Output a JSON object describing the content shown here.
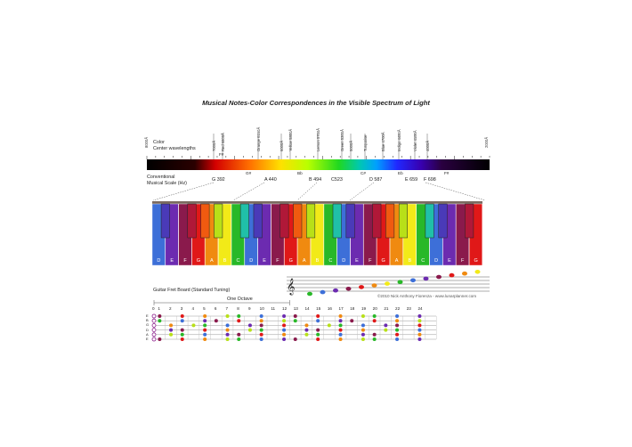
{
  "title": "Musical Notes-Color Correspondences in the Visible Spectrum of Light",
  "spectrum": {
    "label_color": "Color",
    "label_center": "Center wavelengths",
    "label_scale_line1": "Conventional",
    "label_scale_line2": "Musical Scale (Hz)",
    "left_end": "8000Å",
    "right_end": "2000Å",
    "color_labels": [
      {
        "text": "7000Å"
      },
      {
        "text": "Red 6800Å"
      },
      {
        "text": "Orange 6150Å"
      },
      {
        "text": "6000Å"
      },
      {
        "text": "Yellow 5800Å"
      },
      {
        "text": "Lemon 5700Å"
      },
      {
        "text": "Green 5300Å"
      },
      {
        "text": "5000Å"
      },
      {
        "text": "Turquoise"
      },
      {
        "text": "Blue 4700Å"
      },
      {
        "text": "Indigo 4400Å"
      },
      {
        "text": "Violet 4100Å"
      },
      {
        "text": "4000Å"
      }
    ],
    "sharp_labels": [
      "F#",
      "G#",
      "Bb",
      "C#",
      "Eb",
      "F#"
    ],
    "hz_labels": [
      "G 392",
      "A 440",
      "B 494",
      "C523",
      "D 587",
      "E 659",
      "F 698"
    ]
  },
  "keyboard": {
    "white_keys": [
      {
        "note": "D",
        "color": "#3d6fd8"
      },
      {
        "note": "E",
        "color": "#6c2bb0"
      },
      {
        "note": "F",
        "color": "#8a1a4c"
      },
      {
        "note": "G",
        "color": "#e01818"
      },
      {
        "note": "A",
        "color": "#f08a10"
      },
      {
        "note": "B",
        "color": "#f2ea18"
      },
      {
        "note": "C",
        "color": "#28b828"
      },
      {
        "note": "D",
        "color": "#3d6fd8"
      },
      {
        "note": "E",
        "color": "#6c2bb0"
      },
      {
        "note": "F",
        "color": "#8a1a4c"
      },
      {
        "note": "G",
        "color": "#e01818"
      },
      {
        "note": "A",
        "color": "#f08a10"
      },
      {
        "note": "B",
        "color": "#f2ea18"
      },
      {
        "note": "C",
        "color": "#28b828"
      },
      {
        "note": "D",
        "color": "#3d6fd8"
      },
      {
        "note": "E",
        "color": "#6c2bb0"
      },
      {
        "note": "F",
        "color": "#8a1a4c"
      },
      {
        "note": "G",
        "color": "#e01818"
      },
      {
        "note": "A",
        "color": "#f08a10"
      },
      {
        "note": "B",
        "color": "#f2ea18"
      },
      {
        "note": "C",
        "color": "#28b828"
      },
      {
        "note": "D",
        "color": "#3d6fd8"
      },
      {
        "note": "E",
        "color": "#6c2bb0"
      },
      {
        "note": "F",
        "color": "#8a1a4c"
      },
      {
        "note": "G",
        "color": "#e01818"
      }
    ],
    "black_keys": [
      {
        "after": 0,
        "color": "#4a3ab8"
      },
      {
        "after": 2,
        "color": "#b01838"
      },
      {
        "after": 3,
        "color": "#f05a10"
      },
      {
        "after": 4,
        "color": "#b8e018"
      },
      {
        "after": 6,
        "color": "#20c0a8"
      },
      {
        "after": 7,
        "color": "#4a3ab8"
      },
      {
        "after": 9,
        "color": "#b01838"
      },
      {
        "after": 10,
        "color": "#f05a10"
      },
      {
        "after": 11,
        "color": "#b8e018"
      },
      {
        "after": 13,
        "color": "#20c0a8"
      },
      {
        "after": 14,
        "color": "#4a3ab8"
      },
      {
        "after": 16,
        "color": "#b01838"
      },
      {
        "after": 17,
        "color": "#f05a10"
      },
      {
        "after": 18,
        "color": "#b8e018"
      },
      {
        "after": 20,
        "color": "#20c0a8"
      },
      {
        "after": 21,
        "color": "#4a3ab8"
      },
      {
        "after": 23,
        "color": "#b01838"
      }
    ]
  },
  "staff": {
    "copyright": "©2010 Nick Anthony Fiorenza - www.lunarplanner.com",
    "note_colors": [
      "#28b828",
      "#3d6fd8",
      "#6c2bb0",
      "#8a1a4c",
      "#e01818",
      "#f08a10",
      "#f2ea18"
    ]
  },
  "fretboard": {
    "title": "Guitar Fret Board (Standard Tuning)",
    "octave_label": "One Octave",
    "fret_numbers": [
      "0",
      "1",
      "2",
      "3",
      "4",
      "5",
      "6",
      "7",
      "8",
      "9",
      "10",
      "11",
      "12",
      "13",
      "14",
      "15",
      "16",
      "17",
      "18",
      "19",
      "20",
      "21",
      "22",
      "23",
      "24"
    ],
    "strings": [
      "E",
      "B",
      "G",
      "D",
      "A",
      "E"
    ]
  },
  "colors": {
    "spectrum_stops": [
      "#000000",
      "#3a0000",
      "#d40000",
      "#ff6a00",
      "#ffd800",
      "#d8ff00",
      "#28e000",
      "#00d8a0",
      "#00a8ff",
      "#2030ff",
      "#4000c0",
      "#3a0050",
      "#000000"
    ]
  }
}
